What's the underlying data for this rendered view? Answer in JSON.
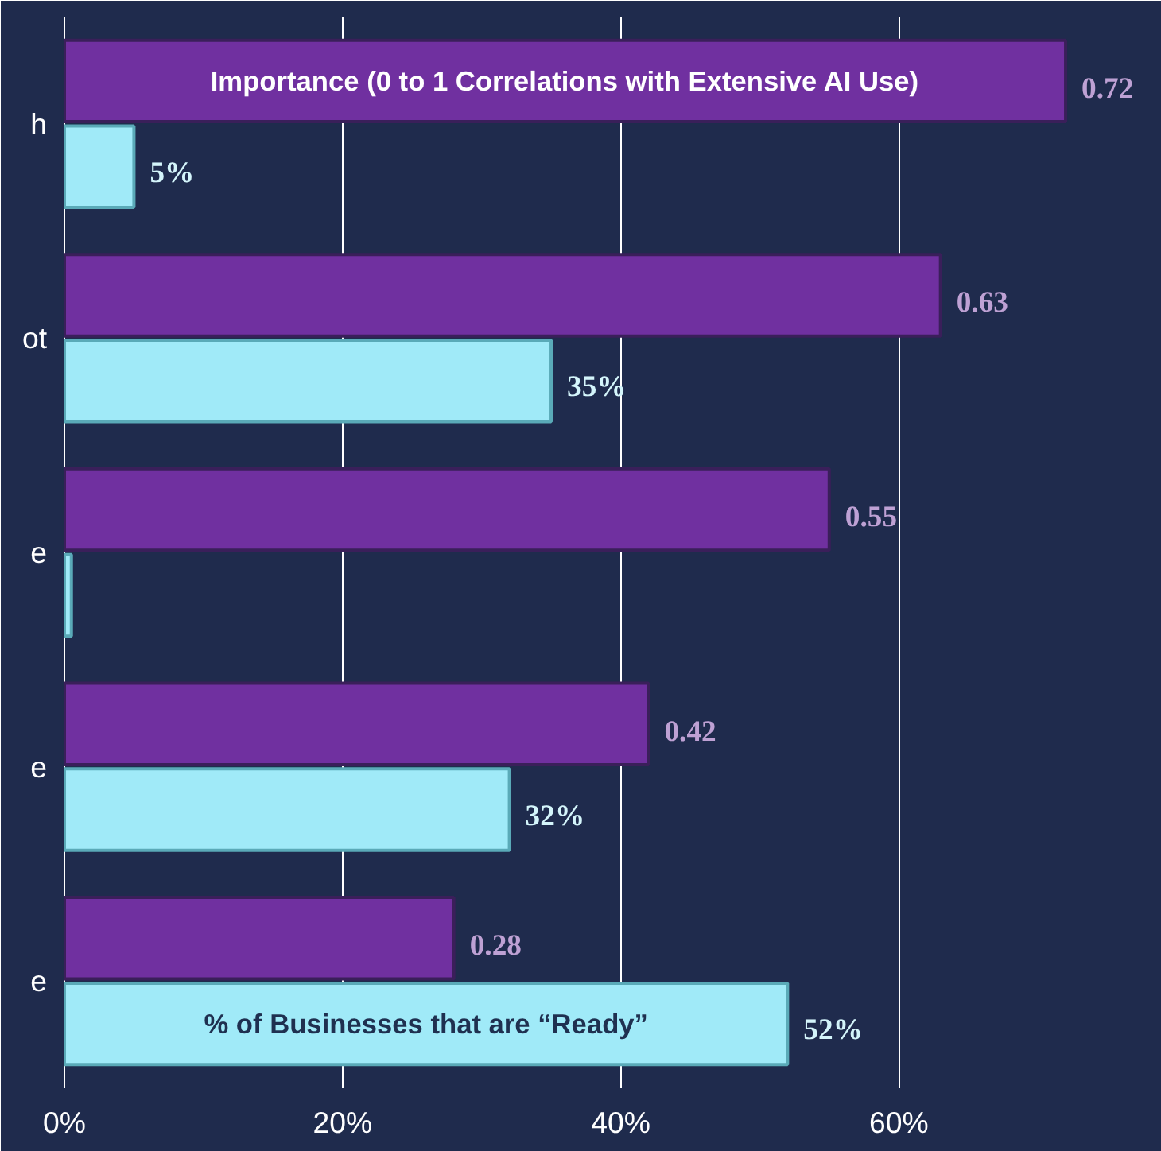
{
  "chart_data": {
    "type": "bar",
    "orientation": "horizontal",
    "categories": [
      "h",
      "ot",
      "e",
      "e",
      "e"
    ],
    "series": [
      {
        "name": "Importance (0 to 1 Correlations with Extensive AI Use)",
        "color": "#7030a0",
        "values": [
          0.72,
          0.63,
          0.55,
          0.42,
          0.28
        ],
        "value_labels": [
          "0.72",
          "0.63",
          "0.55",
          "0.42",
          "0.28"
        ]
      },
      {
        "name": "% of Businesses that are “Ready”",
        "color": "#a0eaf8",
        "values": [
          0.05,
          0.35,
          0.005,
          0.32,
          0.52
        ],
        "value_labels": [
          "5%",
          "35%",
          null,
          "32%",
          "52%"
        ]
      }
    ],
    "xlim": [
      0,
      0.78
    ],
    "xticks": [
      {
        "value": 0,
        "label": "0%"
      },
      {
        "value": 0.2,
        "label": "20%"
      },
      {
        "value": 0.4,
        "label": "40%"
      },
      {
        "value": 0.6,
        "label": "60%"
      }
    ],
    "grid": "x"
  }
}
